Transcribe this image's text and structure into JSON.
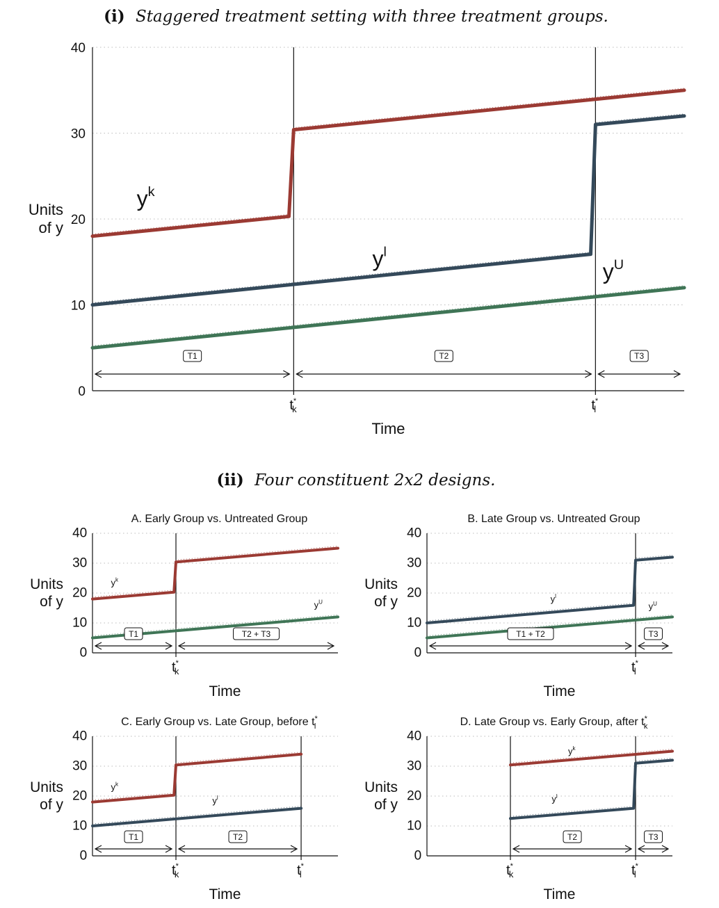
{
  "headings": {
    "top_num": "(i)",
    "top_text": "Staggered treatment setting with three treatment groups.",
    "bottom_num": "(ii)",
    "bottom_text": "Four constituent 2x2 designs."
  },
  "colors": {
    "early": "#9b3a33",
    "late": "#34495a",
    "untreated": "#3f7556",
    "axis": "#111111",
    "grid": "#bbbbbb"
  },
  "chart_data": [
    {
      "id": "main",
      "type": "line",
      "title": "",
      "ylabel": [
        "Units",
        "of y"
      ],
      "xlabel": "Time",
      "ylim": [
        0,
        40
      ],
      "yticks": [
        0,
        10,
        20,
        30,
        40
      ],
      "grid": "horizontal dotted",
      "xlim": [
        0,
        100
      ],
      "vlines": [
        {
          "x": 34,
          "label": "t",
          "sup": "*",
          "sub": "k"
        },
        {
          "x": 85,
          "label": "t",
          "sup": "*",
          "sub": "l"
        }
      ],
      "series": [
        {
          "name": "y",
          "sup": "k",
          "color": "early",
          "x": [
            0,
            33.2,
            34,
            100
          ],
          "y": [
            18,
            20.3,
            30.4,
            35
          ]
        },
        {
          "name": "y",
          "sup": "l",
          "color": "late",
          "x": [
            0,
            84.2,
            85,
            100
          ],
          "y": [
            10,
            15.9,
            31,
            32
          ]
        },
        {
          "name": "y",
          "sup": "U",
          "color": "untreated",
          "x": [
            0,
            100
          ],
          "y": [
            5,
            12
          ]
        }
      ],
      "series_labels": [
        {
          "sup": "k",
          "x": 9,
          "y": 21.5
        },
        {
          "sup": "l",
          "x": 48.5,
          "y": 14.5
        },
        {
          "sup": "U",
          "x": 88,
          "y": 13
        }
      ],
      "periods": [
        {
          "label": "T1",
          "x0": 0,
          "x1": 34
        },
        {
          "label": "T2",
          "x0": 34,
          "x1": 85
        },
        {
          "label": "T3",
          "x0": 85,
          "x1": 100
        }
      ]
    },
    {
      "id": "A",
      "type": "line",
      "title": "A. Early Group vs. Untreated Group",
      "ylabel": [
        "Units",
        "of y"
      ],
      "xlabel": "Time",
      "ylim": [
        0,
        40
      ],
      "yticks": [
        0,
        10,
        20,
        30,
        40
      ],
      "grid": "horizontal dotted",
      "xlim": [
        0,
        100
      ],
      "vlines": [
        {
          "x": 34,
          "label": "t",
          "sup": "*",
          "sub": "k"
        }
      ],
      "series": [
        {
          "name": "y",
          "sup": "k",
          "color": "early",
          "x": [
            0,
            33.2,
            34,
            100
          ],
          "y": [
            18,
            20.3,
            30.4,
            35
          ]
        },
        {
          "name": "y",
          "sup": "U",
          "color": "untreated",
          "x": [
            0,
            100
          ],
          "y": [
            5,
            12
          ]
        }
      ],
      "series_labels": [
        {
          "sup": "k",
          "x": 9,
          "y": 22.5
        },
        {
          "sup": "U",
          "x": 92,
          "y": 15
        }
      ],
      "periods": [
        {
          "label": "T1",
          "x0": 0,
          "x1": 34
        },
        {
          "label": "T2 + T3",
          "x0": 34,
          "x1": 100
        }
      ]
    },
    {
      "id": "B",
      "type": "line",
      "title": "B. Late Group vs. Untreated Group",
      "ylabel": [
        "Units",
        "of y"
      ],
      "xlabel": "Time",
      "ylim": [
        0,
        40
      ],
      "yticks": [
        0,
        10,
        20,
        30,
        40
      ],
      "grid": "horizontal dotted",
      "xlim": [
        0,
        100
      ],
      "vlines": [
        {
          "x": 85,
          "label": "t",
          "sup": "*",
          "sub": "l"
        }
      ],
      "series": [
        {
          "name": "y",
          "sup": "l",
          "color": "late",
          "x": [
            0,
            84.2,
            85,
            100
          ],
          "y": [
            10,
            15.9,
            31,
            32
          ]
        },
        {
          "name": "y",
          "sup": "U",
          "color": "untreated",
          "x": [
            0,
            100
          ],
          "y": [
            5,
            12
          ]
        }
      ],
      "series_labels": [
        {
          "sup": "l",
          "x": 51.5,
          "y": 17
        },
        {
          "sup": "U",
          "x": 92,
          "y": 14.5
        }
      ],
      "periods": [
        {
          "label": "T1 + T2",
          "x0": 0,
          "x1": 85
        },
        {
          "label": "T3",
          "x0": 85,
          "x1": 100
        }
      ]
    },
    {
      "id": "C",
      "type": "line",
      "title": "C. Early Group vs. Late Group, before t",
      "title_sup": "*",
      "title_sub": "l",
      "ylabel": [
        "Units",
        "of y"
      ],
      "xlabel": "Time",
      "ylim": [
        0,
        40
      ],
      "yticks": [
        0,
        10,
        20,
        30,
        40
      ],
      "grid": "horizontal dotted",
      "xlim": [
        0,
        100
      ],
      "vlines": [
        {
          "x": 34,
          "label": "t",
          "sup": "*",
          "sub": "k"
        },
        {
          "x": 85,
          "label": "t",
          "sup": "*",
          "sub": "l"
        }
      ],
      "series": [
        {
          "name": "y",
          "sup": "k",
          "color": "early",
          "x": [
            0,
            33.2,
            34,
            85
          ],
          "y": [
            18,
            20.3,
            30.4,
            34
          ]
        },
        {
          "name": "y",
          "sup": "l",
          "color": "late",
          "x": [
            0,
            85
          ],
          "y": [
            10,
            15.9
          ]
        }
      ],
      "series_labels": [
        {
          "sup": "k",
          "x": 9,
          "y": 22
        },
        {
          "sup": "l",
          "x": 50,
          "y": 17.5
        }
      ],
      "periods": [
        {
          "label": "T1",
          "x0": 0,
          "x1": 34
        },
        {
          "label": "T2",
          "x0": 34,
          "x1": 85
        }
      ]
    },
    {
      "id": "D",
      "type": "line",
      "title": "D. Late Group vs. Early Group, after t",
      "title_sup": "*",
      "title_sub": "k",
      "ylabel": [
        "Units",
        "of y"
      ],
      "xlabel": "Time",
      "ylim": [
        0,
        40
      ],
      "yticks": [
        0,
        10,
        20,
        30,
        40
      ],
      "grid": "horizontal dotted",
      "xlim": [
        0,
        100
      ],
      "vlines": [
        {
          "x": 34,
          "label": "t",
          "sup": "*",
          "sub": "k"
        },
        {
          "x": 85,
          "label": "t",
          "sup": "*",
          "sub": "l"
        }
      ],
      "series": [
        {
          "name": "y",
          "sup": "k",
          "color": "early",
          "x": [
            34,
            100
          ],
          "y": [
            30.4,
            35
          ]
        },
        {
          "name": "y",
          "sup": "l",
          "color": "late",
          "x": [
            34,
            84.2,
            85,
            100
          ],
          "y": [
            12.5,
            15.9,
            31,
            32
          ]
        }
      ],
      "series_labels": [
        {
          "sup": "k",
          "x": 59,
          "y": 34
        },
        {
          "sup": "l",
          "x": 52,
          "y": 18
        }
      ],
      "periods": [
        {
          "label": "T2",
          "x0": 34,
          "x1": 85
        },
        {
          "label": "T3",
          "x0": 85,
          "x1": 100
        }
      ]
    }
  ]
}
